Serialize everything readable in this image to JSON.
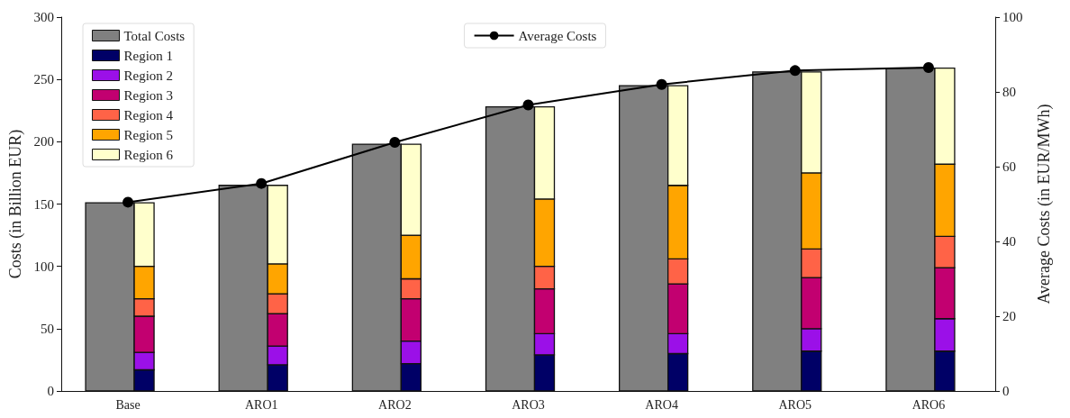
{
  "chart_data": {
    "type": "bar",
    "ylabel": "Costs (in Billion EUR)",
    "y2label": "Average Costs (in EUR/MWh)",
    "categories": [
      "Base",
      "ARO1",
      "ARO2",
      "ARO3",
      "ARO4",
      "ARO5",
      "ARO6"
    ],
    "series": [
      {
        "name": "Total Costs",
        "color": "#808080",
        "values": [
          151,
          165,
          198,
          228,
          245,
          256,
          259
        ]
      },
      {
        "name": "Region 1",
        "color": "#000066",
        "values": [
          17,
          21,
          22,
          29,
          30,
          32,
          32
        ],
        "base": [
          0,
          0,
          0,
          0,
          0,
          0,
          0
        ]
      },
      {
        "name": "Region 2",
        "color": "#9b10e8",
        "values": [
          14,
          15,
          18,
          17,
          16,
          18,
          26
        ],
        "base": [
          17,
          21,
          22,
          29,
          30,
          32,
          32
        ]
      },
      {
        "name": "Region 3",
        "color": "#c20070",
        "values": [
          29,
          26,
          34,
          36,
          40,
          41,
          41
        ],
        "base": [
          31,
          36,
          40,
          46,
          46,
          50,
          58
        ]
      },
      {
        "name": "Region 4",
        "color": "#ff6347",
        "values": [
          14,
          16,
          16,
          18,
          20,
          23,
          25
        ],
        "base": [
          60,
          62,
          74,
          82,
          86,
          91,
          99
        ]
      },
      {
        "name": "Region 5",
        "color": "#ffa500",
        "values": [
          26,
          24,
          35,
          54,
          59,
          61,
          58
        ],
        "base": [
          74,
          78,
          90,
          100,
          106,
          114,
          124
        ]
      },
      {
        "name": "Region 6",
        "color": "#ffffcc",
        "values": [
          51,
          63,
          73,
          74,
          80,
          81,
          77
        ],
        "base": [
          100,
          102,
          125,
          154,
          165,
          175,
          182
        ]
      },
      {
        "name": "Average Costs",
        "type": "line",
        "axis": "y2",
        "color": "#000000",
        "marker": "circle",
        "values": [
          50.5,
          55.5,
          66.5,
          76.5,
          82,
          85.7,
          86.5
        ]
      }
    ],
    "ylim": [
      0,
      300
    ],
    "yticks": [
      0,
      50,
      100,
      150,
      200,
      250,
      300
    ],
    "y2lim": [
      0,
      100
    ],
    "y2ticks": [
      0,
      20,
      40,
      60,
      80,
      100
    ],
    "legend": "top left",
    "grid": false
  }
}
